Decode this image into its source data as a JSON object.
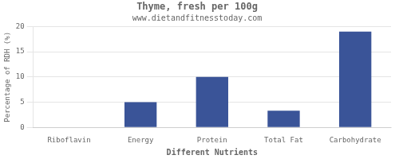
{
  "chart_data": {
    "type": "bar",
    "title": "Thyme, fresh per 100g",
    "subtitle": "www.dietandfitnesstoday.com",
    "xlabel": "Different Nutrients",
    "ylabel": "Percentage of RDH (%)",
    "categories": [
      "Riboflavin",
      "Energy",
      "Protein",
      "Total Fat",
      "Carbohydrate"
    ],
    "values": [
      0,
      5,
      10,
      3.3,
      19
    ],
    "color": "#3a5498",
    "ylim": [
      0,
      20
    ],
    "yticks": [
      0,
      5,
      10,
      15,
      20
    ],
    "grid": true
  }
}
